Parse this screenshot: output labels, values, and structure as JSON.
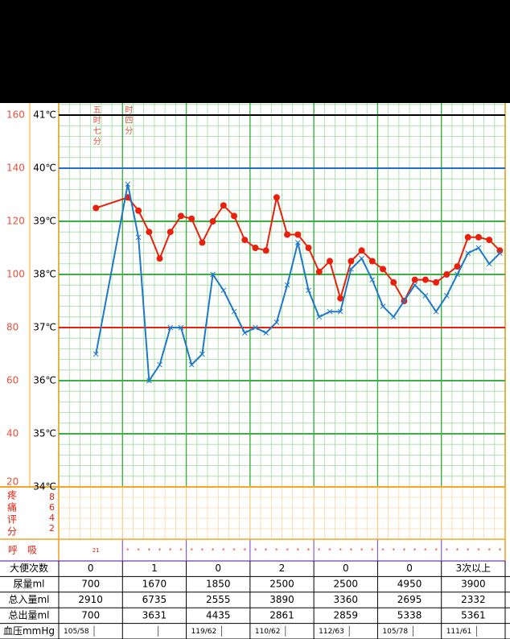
{
  "chart_data": {
    "type": "line",
    "x": [
      3,
      6,
      7,
      8,
      9,
      10,
      11,
      12,
      13,
      14,
      15,
      16,
      17,
      18,
      19,
      20,
      21,
      22,
      23,
      24,
      25,
      26,
      27,
      28,
      29,
      30,
      31,
      32,
      33,
      34,
      35,
      36,
      37,
      38,
      39,
      40,
      41
    ],
    "xlim": [
      -0.5,
      41.5
    ],
    "ylim": [
      20,
      160
    ],
    "yticks": [
      20,
      40,
      60,
      80,
      100,
      120,
      140,
      160
    ],
    "y2lim": [
      34,
      41
    ],
    "y2ticks": [
      {
        "value": 34,
        "label": "34℃"
      },
      {
        "value": 35,
        "label": "35℃"
      },
      {
        "value": 36,
        "label": "36℃"
      },
      {
        "value": 37,
        "label": "37℃"
      },
      {
        "value": 38,
        "label": "38℃"
      },
      {
        "value": 39,
        "label": "39℃"
      },
      {
        "value": 40,
        "label": "40℃"
      },
      {
        "value": 41,
        "label": "41℃"
      }
    ],
    "y2grid_colors": [
      "#f5a623",
      "#3cb043",
      "#3cb043",
      "#e8200c",
      "#3cb043",
      "#3cb043",
      "#1f6fc8",
      "#000000"
    ],
    "series": [
      {
        "color": "#e8200c",
        "values": [
          125,
          129,
          124,
          116,
          106,
          116,
          122,
          121,
          112,
          120,
          126,
          122,
          113,
          110,
          109,
          129,
          115,
          115,
          110,
          101,
          105,
          91,
          105,
          109,
          105,
          102,
          97,
          90,
          98,
          98,
          97,
          100,
          103,
          114,
          114,
          113,
          109
        ]
      },
      {
        "color": "#1f78c8",
        "axis": "y2",
        "values": [
          36.5,
          39.7,
          38.7,
          36.0,
          36.3,
          37.0,
          37.0,
          36.3,
          36.5,
          38.0,
          37.7,
          37.3,
          36.9,
          37.0,
          36.9,
          37.1,
          37.8,
          38.6,
          37.7,
          37.2,
          37.3,
          37.3,
          38.1,
          38.3,
          37.9,
          37.4,
          37.2,
          37.5,
          37.8,
          37.6,
          37.3,
          37.6,
          38.0,
          38.4,
          38.5,
          38.2,
          38.4
        ]
      }
    ],
    "annotations": [
      {
        "x": 3,
        "text": "五时七分"
      },
      {
        "x": 6,
        "text": "时四分"
      }
    ],
    "pain": {
      "label": "疼痛评分",
      "ylim": [
        0,
        10
      ],
      "yticks": [
        2,
        4,
        6,
        8
      ]
    },
    "respiration": {
      "label": "呼　吸",
      "x": [
        3,
        6,
        7,
        8,
        9,
        10,
        11,
        12,
        13,
        14,
        15,
        16,
        17,
        18,
        19,
        20,
        21,
        22,
        23,
        24,
        25,
        26,
        27,
        28,
        29,
        30,
        31,
        32,
        33,
        34,
        35,
        36,
        37,
        38,
        39,
        40,
        41
      ],
      "values": [
        21,
        "*",
        "*",
        "*",
        "*",
        "*",
        "*",
        "*",
        "*",
        "*",
        "*",
        "*",
        "*",
        "*",
        "*",
        "*",
        "*",
        "*",
        "*",
        "*",
        "*",
        "*",
        "*",
        "*",
        "*",
        "*",
        "*",
        "*",
        "*",
        "*",
        "*",
        "*",
        "*",
        "*",
        "*",
        "*",
        "*"
      ]
    }
  },
  "table": {
    "rows": [
      {
        "label": "大便次数",
        "values": [
          0,
          1,
          0,
          2,
          0,
          0,
          "3次以上"
        ]
      },
      {
        "label": "尿量ml",
        "values": [
          700,
          1670,
          1850,
          2500,
          2500,
          4950,
          3900
        ]
      },
      {
        "label": "总入量ml",
        "values": [
          2910,
          6735,
          2555,
          3890,
          3360,
          2695,
          2332
        ]
      },
      {
        "label": "总出量ml",
        "values": [
          700,
          3631,
          4435,
          2861,
          2859,
          5338,
          5361
        ]
      },
      {
        "label": "血压mmHg",
        "values": [
          "105/58",
          null,
          "119/62",
          "110/62",
          "112/63",
          "105/78",
          "111/61"
        ]
      }
    ]
  }
}
